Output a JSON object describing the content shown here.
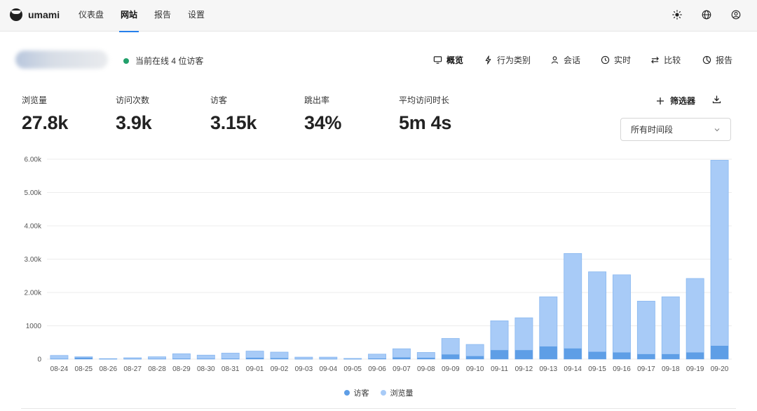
{
  "app": {
    "name": "umami"
  },
  "nav": {
    "items": [
      "仪表盘",
      "网站",
      "报告",
      "设置"
    ],
    "active": 1
  },
  "header": {
    "online_text": "当前在线 4 位访客",
    "tabs": [
      {
        "label": "概览",
        "icon": "monitor-icon"
      },
      {
        "label": "行为类别",
        "icon": "lightning-icon"
      },
      {
        "label": "会话",
        "icon": "user-icon"
      },
      {
        "label": "实时",
        "icon": "clock-icon"
      },
      {
        "label": "比较",
        "icon": "compare-arrows-icon"
      },
      {
        "label": "报告",
        "icon": "pie-chart-icon"
      }
    ],
    "active_tab": 0
  },
  "metrics": [
    {
      "label": "浏览量",
      "value": "27.8k"
    },
    {
      "label": "访问次数",
      "value": "3.9k"
    },
    {
      "label": "访客",
      "value": "3.15k"
    },
    {
      "label": "跳出率",
      "value": "34%"
    },
    {
      "label": "平均访问时长",
      "value": "5m 4s"
    }
  ],
  "toolbar": {
    "filter_label": "筛选器",
    "date_range": "所有时间段"
  },
  "colors": {
    "accent": "#2680eb",
    "online": "#22a06b",
    "visitors": "#5e9ee6",
    "pageviews": "#a8cbf7"
  },
  "chart_data": {
    "type": "bar",
    "categories": [
      "08-24",
      "08-25",
      "08-26",
      "08-27",
      "08-28",
      "08-29",
      "08-30",
      "08-31",
      "09-01",
      "09-02",
      "09-03",
      "09-04",
      "09-05",
      "09-06",
      "09-07",
      "09-08",
      "09-09",
      "09-10",
      "09-11",
      "09-12",
      "09-13",
      "09-14",
      "09-15",
      "09-16",
      "09-17",
      "09-18",
      "09-19",
      "09-20"
    ],
    "series": [
      {
        "name": "访客",
        "values": [
          10,
          45,
          3,
          6,
          8,
          15,
          12,
          15,
          40,
          30,
          6,
          6,
          4,
          20,
          50,
          40,
          140,
          90,
          270,
          270,
          380,
          320,
          220,
          200,
          150,
          150,
          200,
          400
        ]
      },
      {
        "name": "浏览量",
        "values": [
          110,
          70,
          15,
          40,
          70,
          160,
          120,
          180,
          240,
          210,
          60,
          60,
          20,
          150,
          310,
          200,
          620,
          440,
          1150,
          1240,
          1870,
          3170,
          2620,
          2530,
          1740,
          1870,
          2420,
          5970
        ]
      }
    ],
    "y_ticks": [
      "0",
      "1000",
      "2.00k",
      "3.00k",
      "4.00k",
      "5.00k",
      "6.00k"
    ],
    "ylim": [
      0,
      6000
    ],
    "stacked": false,
    "grid": true,
    "legend": "bottom-center"
  }
}
